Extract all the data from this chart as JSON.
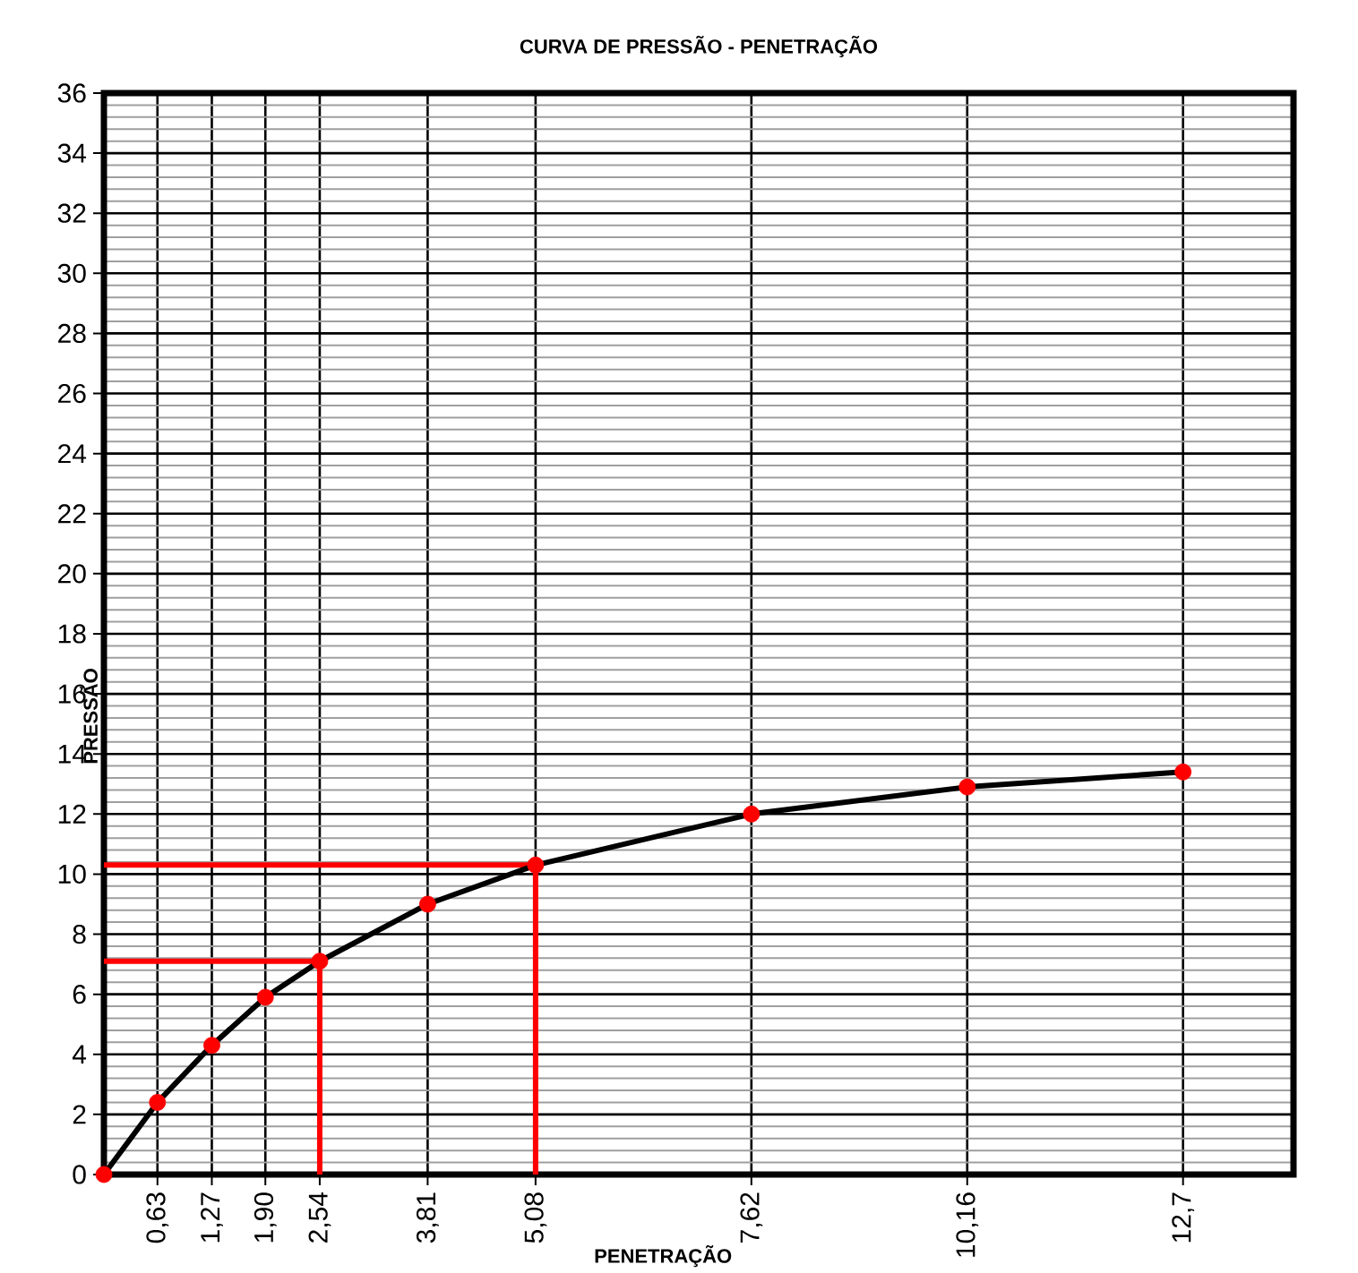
{
  "chart_data": {
    "type": "line",
    "title": "CURVA DE PRESSÃO - PENETRAÇÃO",
    "xlabel": "PENETRAÇÃO",
    "ylabel": "PRESSÃO",
    "xlim": [
      0,
      14
    ],
    "ylim": [
      0,
      36
    ],
    "xticks": [
      {
        "value": 0.63,
        "label": "0,63"
      },
      {
        "value": 1.27,
        "label": "1,27"
      },
      {
        "value": 1.9,
        "label": "1,90"
      },
      {
        "value": 2.54,
        "label": "2,54"
      },
      {
        "value": 3.81,
        "label": "3,81"
      },
      {
        "value": 5.08,
        "label": "5,08"
      },
      {
        "value": 7.62,
        "label": "7,62"
      },
      {
        "value": 10.16,
        "label": "10,16"
      },
      {
        "value": 12.7,
        "label": "12,7"
      }
    ],
    "yticks": [
      0,
      2,
      4,
      6,
      8,
      10,
      12,
      14,
      16,
      18,
      20,
      22,
      24,
      26,
      28,
      30,
      32,
      34,
      36
    ],
    "grid": true,
    "series": [
      {
        "color": "#ff0000",
        "marker": "none",
        "x": [
          0,
          2.54,
          2.54
        ],
        "values": [
          7.1,
          7.1,
          0
        ]
      },
      {
        "color": "#ff0000",
        "marker": "none",
        "x": [
          0,
          5.08,
          5.08
        ],
        "values": [
          10.3,
          10.3,
          0
        ]
      },
      {
        "color": "#000000",
        "marker": "none",
        "x": [
          0,
          0.63,
          1.27,
          1.9,
          2.54,
          3.81,
          5.08,
          7.62,
          10.16,
          12.7
        ],
        "values": [
          0,
          2.4,
          4.3,
          5.9,
          7.1,
          9.0,
          10.3,
          12.0,
          12.9,
          13.4
        ]
      },
      {
        "type": "scatter",
        "color": "#ff0000",
        "marker": "circle",
        "x": [
          0,
          0.63,
          1.27,
          1.9,
          2.54,
          3.81,
          5.08,
          7.62,
          10.16,
          12.7
        ],
        "values": [
          0,
          2.4,
          4.3,
          5.9,
          7.1,
          9.0,
          10.3,
          12.0,
          12.9,
          13.4
        ]
      }
    ]
  }
}
